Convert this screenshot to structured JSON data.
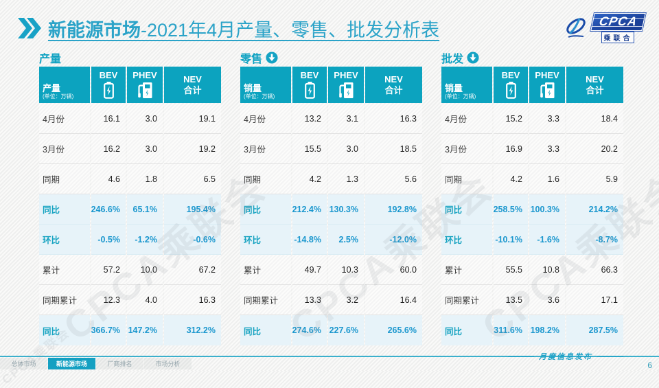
{
  "header": {
    "title_bold": "新能源市场",
    "title_rest": "-2021年4月产量、零售、批发分析表",
    "logo_text": "CPCA",
    "logo_sub": "乘联合"
  },
  "columns": {
    "bev": "BEV",
    "phev": "PHEV",
    "nev_line1": "NEV",
    "nev_line2": "合计",
    "unit": "(单位：万辆)"
  },
  "row_labels": [
    "4月份",
    "3月份",
    "同期",
    "同比",
    "环比",
    "累计",
    "同期累计",
    "同比"
  ],
  "highlight_rows": [
    3,
    4,
    7
  ],
  "tables": [
    {
      "section": "产量",
      "arrow": false,
      "corner": "产量",
      "rows": [
        [
          "16.1",
          "3.0",
          "19.1"
        ],
        [
          "16.2",
          "3.0",
          "19.2"
        ],
        [
          "4.6",
          "1.8",
          "6.5"
        ],
        [
          "246.6%",
          "65.1%",
          "195.4%"
        ],
        [
          "-0.5%",
          "-1.2%",
          "-0.6%"
        ],
        [
          "57.2",
          "10.0",
          "67.2"
        ],
        [
          "12.3",
          "4.0",
          "16.3"
        ],
        [
          "366.7%",
          "147.2%",
          "312.2%"
        ]
      ]
    },
    {
      "section": "零售",
      "arrow": true,
      "corner": "销量",
      "rows": [
        [
          "13.2",
          "3.1",
          "16.3"
        ],
        [
          "15.5",
          "3.0",
          "18.5"
        ],
        [
          "4.2",
          "1.3",
          "5.6"
        ],
        [
          "212.4%",
          "130.3%",
          "192.8%"
        ],
        [
          "-14.8%",
          "2.5%",
          "-12.0%"
        ],
        [
          "49.7",
          "10.3",
          "60.0"
        ],
        [
          "13.3",
          "3.2",
          "16.4"
        ],
        [
          "274.6%",
          "227.6%",
          "265.6%"
        ]
      ]
    },
    {
      "section": "批发",
      "arrow": true,
      "corner": "销量",
      "rows": [
        [
          "15.2",
          "3.3",
          "18.4"
        ],
        [
          "16.9",
          "3.3",
          "20.2"
        ],
        [
          "4.2",
          "1.6",
          "5.9"
        ],
        [
          "258.5%",
          "100.3%",
          "214.2%"
        ],
        [
          "-10.1%",
          "-1.6%",
          "-8.7%"
        ],
        [
          "55.5",
          "10.8",
          "66.3"
        ],
        [
          "13.5",
          "3.6",
          "17.1"
        ],
        [
          "311.6%",
          "198.2%",
          "287.5%"
        ]
      ]
    }
  ],
  "footer": {
    "tabs": [
      "总体市场",
      "新能源市场",
      "厂商排名",
      "市场分析"
    ],
    "active_index": 1,
    "caption": "月度信息发布",
    "page": "6"
  },
  "watermark": "CPCA乘联会",
  "colors": {
    "teal_header": "#0CA3BF",
    "highlight_bg": "#E7F3F9",
    "value_blue": "#1B97CE",
    "title_teal": "#2BA3C8"
  }
}
